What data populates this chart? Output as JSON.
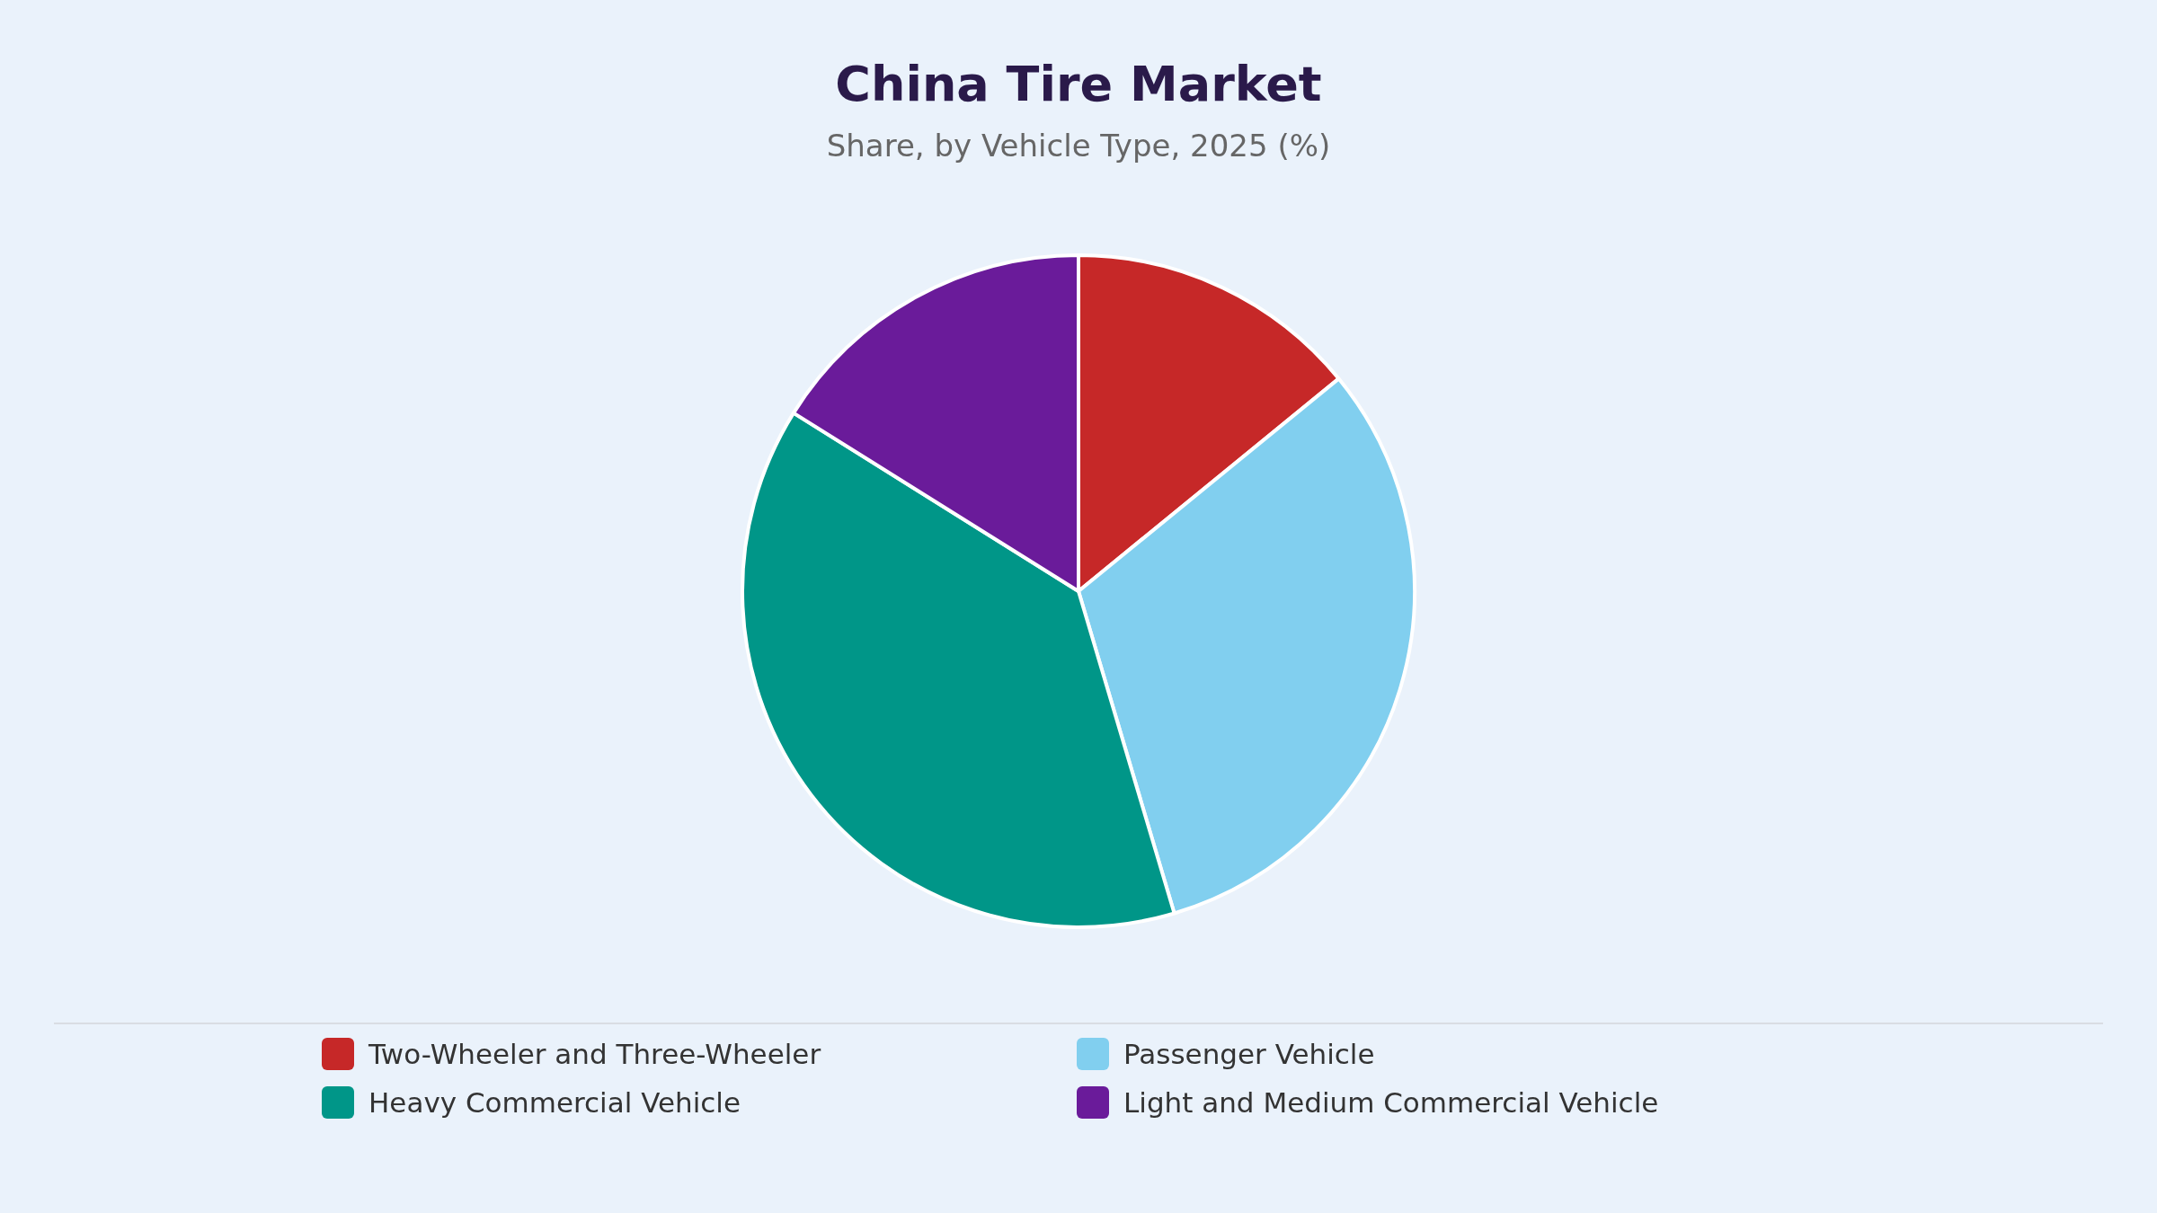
{
  "chart_data": {
    "type": "pie",
    "title": "China Tire Market",
    "subtitle": "Share, by Vehicle Type, 2025 (%)",
    "categories": [
      "Two-Wheeler and Three-Wheeler",
      "Passenger Vehicle",
      "Heavy Commercial Vehicle",
      "Light and Medium Commercial Vehicle"
    ],
    "values": [
      14.1,
      31.3,
      38.5,
      16.1
    ],
    "colors": [
      "#c62828",
      "#81cfef",
      "#009688",
      "#6a1b9a"
    ],
    "legend": "bottom"
  }
}
